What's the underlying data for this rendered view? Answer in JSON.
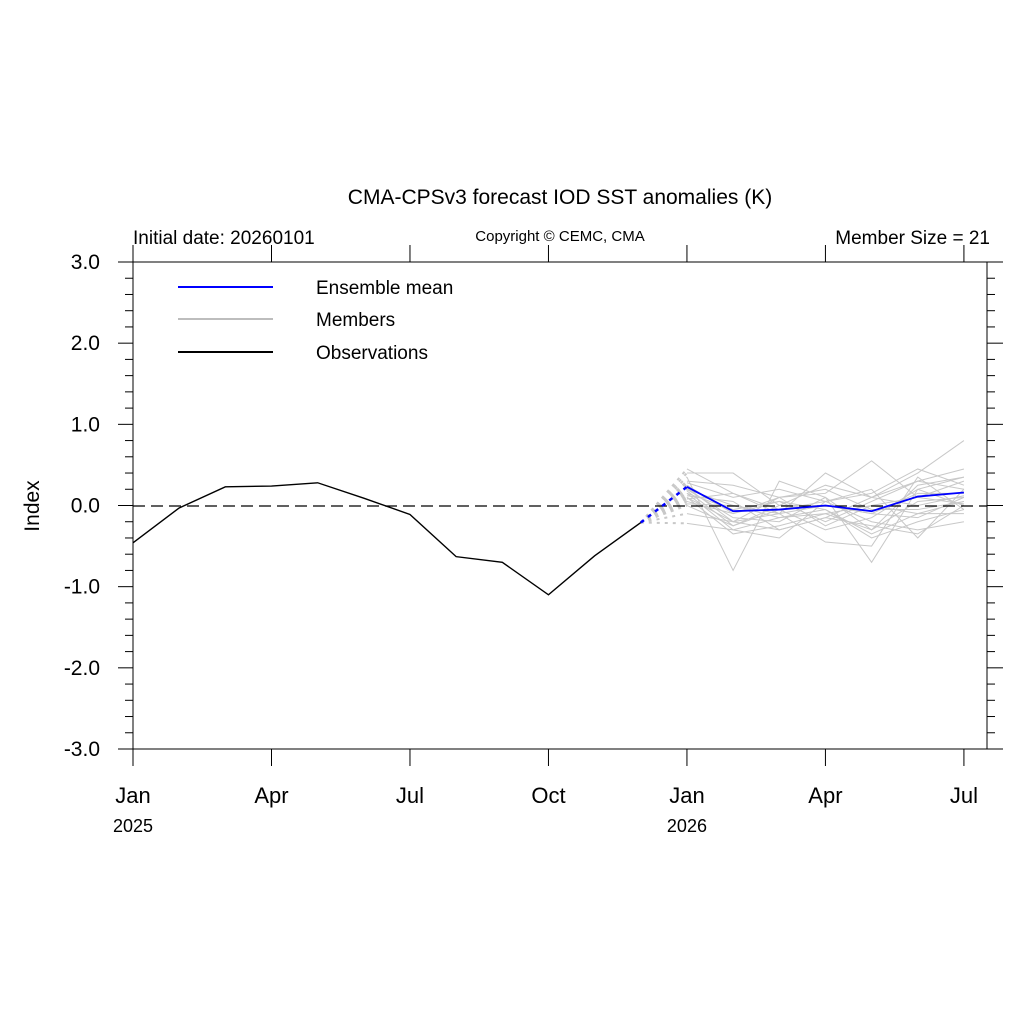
{
  "chart_data": {
    "type": "line",
    "title": "CMA-CPSv3 forecast IOD SST anomalies (K)",
    "left_label": "Initial date: 20260101",
    "center_label": "Copyright © CEMC, CMA",
    "right_label": "Member Size = 21",
    "ylabel": "Index",
    "xlabel": "",
    "ylim": [
      -3.0,
      3.0
    ],
    "yticks": [
      "3.0",
      "2.0",
      "1.0",
      "0.0",
      "-1.0",
      "-2.0",
      "-3.0"
    ],
    "ytick_values": [
      3,
      2,
      1,
      0,
      -1,
      -2,
      -3
    ],
    "xticks": [
      {
        "month_index": 0,
        "label": "Jan",
        "year": "2025"
      },
      {
        "month_index": 3,
        "label": "Apr",
        "year": ""
      },
      {
        "month_index": 6,
        "label": "Jul",
        "year": ""
      },
      {
        "month_index": 9,
        "label": "Oct",
        "year": ""
      },
      {
        "month_index": 12,
        "label": "Jan",
        "year": "2026"
      },
      {
        "month_index": 15,
        "label": "Apr",
        "year": ""
      },
      {
        "month_index": 18,
        "label": "Jul",
        "year": ""
      }
    ],
    "xlim_months": [
      0,
      18.5
    ],
    "legend": {
      "position": "top-left",
      "entries": [
        {
          "label": "Ensemble mean",
          "color": "#0000ff"
        },
        {
          "label": "Members",
          "color": "#bdbdbd"
        },
        {
          "label": "Observations",
          "color": "#000000"
        }
      ]
    },
    "observations": {
      "start_month_index": 0,
      "values": [
        -0.46,
        -0.03,
        0.23,
        0.24,
        0.28,
        0.09,
        -0.11,
        -0.63,
        -0.7,
        -1.1,
        -0.62,
        -0.21
      ]
    },
    "ensemble_mean": {
      "start_month_index": 12,
      "values": [
        0.23,
        -0.07,
        -0.05,
        0.0,
        -0.07,
        0.11,
        0.16
      ]
    },
    "members": {
      "start_month_index": 12,
      "values": [
        [
          0.45,
          0.15,
          -0.1,
          0.4,
          0.1,
          0.4,
          0.8
        ],
        [
          0.4,
          0.4,
          0.0,
          0.25,
          0.1,
          0.3,
          0.45
        ],
        [
          0.35,
          -0.8,
          0.3,
          0.1,
          -0.7,
          0.2,
          0.35
        ],
        [
          0.3,
          0.25,
          0.1,
          0.15,
          0.55,
          0.1,
          0.3
        ],
        [
          0.28,
          0.1,
          0.2,
          0.05,
          0.15,
          0.45,
          0.25
        ],
        [
          0.25,
          -0.1,
          0.05,
          -0.2,
          0.05,
          0.3,
          0.2
        ],
        [
          0.22,
          -0.2,
          -0.1,
          0.0,
          -0.1,
          0.15,
          0.15
        ],
        [
          0.2,
          -0.15,
          -0.2,
          0.1,
          -0.3,
          0.05,
          0.1
        ],
        [
          0.2,
          0.0,
          -0.15,
          -0.1,
          0.0,
          -0.1,
          0.05
        ],
        [
          0.18,
          -0.25,
          -0.05,
          -0.3,
          -0.15,
          0.2,
          0.0
        ],
        [
          0.15,
          -0.05,
          0.05,
          -0.05,
          -0.4,
          -0.2,
          -0.05
        ],
        [
          0.15,
          -0.3,
          -0.4,
          0.05,
          -0.2,
          -0.3,
          -0.2
        ],
        [
          0.12,
          0.05,
          -0.3,
          -0.15,
          0.1,
          0.0,
          0.12
        ],
        [
          0.1,
          -0.2,
          0.1,
          0.2,
          -0.05,
          -0.05,
          0.05
        ],
        [
          0.1,
          -0.35,
          -0.25,
          -0.1,
          -0.3,
          0.25,
          0.35
        ],
        [
          0.08,
          0.15,
          -0.05,
          0.05,
          0.2,
          -0.4,
          0.2
        ],
        [
          0.05,
          -0.1,
          0.1,
          -0.25,
          0.0,
          0.1,
          0.02
        ],
        [
          0.02,
          0.0,
          -0.1,
          -0.45,
          -0.5,
          0.35,
          -0.05
        ],
        [
          0.0,
          -0.25,
          0.0,
          0.0,
          -0.1,
          -0.15,
          0.1
        ],
        [
          -0.1,
          -0.2,
          -0.3,
          -0.15,
          -0.25,
          -0.35,
          0.0
        ],
        [
          -0.22,
          -0.3,
          -0.15,
          -0.05,
          -0.35,
          -0.1,
          -0.1
        ]
      ]
    }
  }
}
